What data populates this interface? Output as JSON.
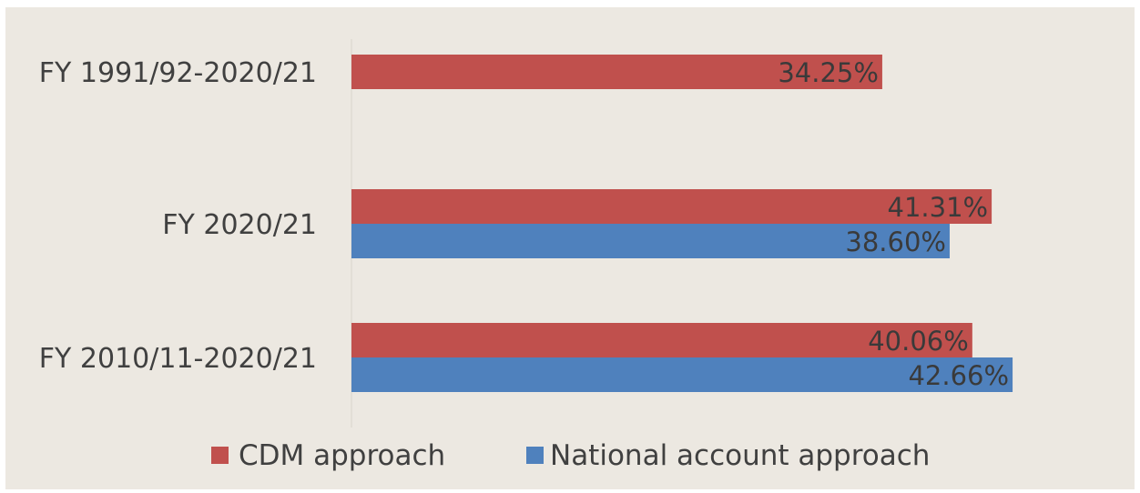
{
  "chart_data": {
    "type": "bar",
    "orientation": "horizontal",
    "categories": [
      "FY 1991/92-2020/21",
      "FY 2020/21",
      "FY 2010/11-2020/21"
    ],
    "series": [
      {
        "name": "CDM approach",
        "values": [
          34.25,
          41.31,
          40.06
        ],
        "labels": [
          "34.25%",
          "41.31%",
          "40.06%"
        ],
        "color": "#c0504d"
      },
      {
        "name": "National account approach",
        "values": [
          null,
          38.6,
          42.66
        ],
        "labels": [
          "",
          "38.60%",
          "42.66%"
        ],
        "color": "#4f81bd"
      }
    ],
    "xlim": [
      0,
      50
    ],
    "grid": false,
    "legend_position": "bottom",
    "background": "#ece8e1"
  }
}
